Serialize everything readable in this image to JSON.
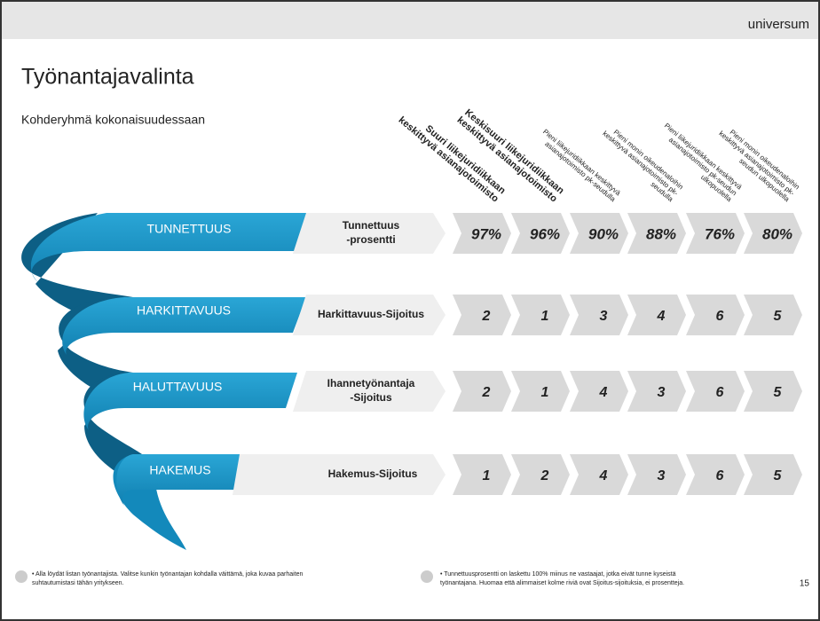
{
  "brand": "universum",
  "title": "Työnantajavalinta",
  "subtitle": "Kohderyhmä kokonaisuudessaan",
  "columns": [
    {
      "bold": true,
      "lines": [
        "Suuri liikejuridiikkaan",
        "keskittyvä asianajotoimisto"
      ]
    },
    {
      "bold": true,
      "lines": [
        "Keskisuuri liikejuridiikkaan",
        "keskittyvä asianajotoimisto"
      ]
    },
    {
      "bold": false,
      "lines": [
        "Pieni liikejuridiikkaan keskittyvä",
        "asianajotoimisto pk-seudulla"
      ]
    },
    {
      "bold": false,
      "lines": [
        "Pieni monin oikeudenaloihin",
        "keskittyvä asianajotoimisto pk-",
        "seudulla"
      ]
    },
    {
      "bold": false,
      "lines": [
        "Pieni liikejuridiikkaan keskittyvä",
        "asianajotoimisto pk-seudun",
        "ulkopuolella"
      ]
    },
    {
      "bold": false,
      "lines": [
        "Pieni monin oikeudenaloihin",
        "keskittyvä asianajotoimisto pk-",
        "seudun ulkopuolella"
      ]
    }
  ],
  "rows": [
    {
      "stage": "TUNNETTUUS",
      "metric": [
        "Tunnettuus",
        "-prosentti"
      ],
      "values": [
        "97%",
        "96%",
        "90%",
        "88%",
        "76%",
        "80%"
      ]
    },
    {
      "stage": "HARKITTAVUUS",
      "metric": [
        "Harkittavuus-Sijoitus"
      ],
      "values": [
        "2",
        "1",
        "3",
        "4",
        "6",
        "5"
      ]
    },
    {
      "stage": "HALUTTAVUUS",
      "metric": [
        "Ihannetyönantaja",
        "-Sijoitus"
      ],
      "values": [
        "2",
        "1",
        "4",
        "3",
        "6",
        "5"
      ]
    },
    {
      "stage": "HAKEMUS",
      "metric": [
        "Hakemus-Sijoitus"
      ],
      "values": [
        "1",
        "2",
        "4",
        "3",
        "6",
        "5"
      ]
    }
  ],
  "footnotes": [
    [
      "• Alla löydät listan työnantajista. Valitse kunkin työnantajan kohdalla väittämä, joka kuvaa parhaiten",
      "suhtautumistasi tähän yritykseen."
    ],
    [
      "• Tunnettuusprosentti on laskettu 100% miinus ne vastaajat, jotka eivät tunne kyseistä",
      "työnantajana. Huomaa että alimmaiset kolme riviä ovat Sijoitus-sijoituksia, ei prosentteja."
    ]
  ],
  "page_number": "15"
}
